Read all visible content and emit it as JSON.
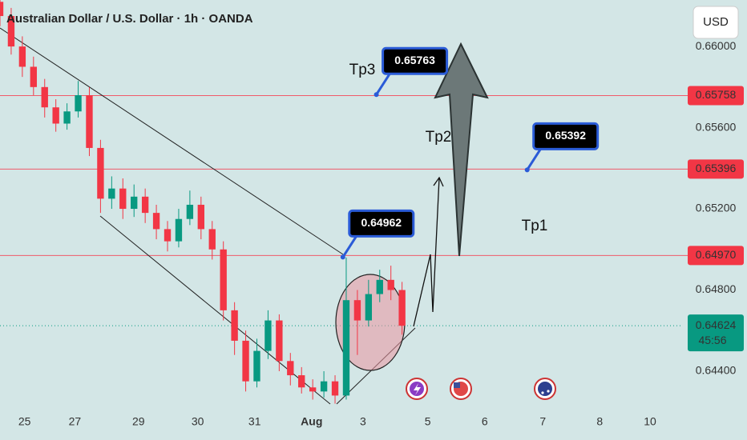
{
  "chart_data": {
    "type": "candlestick",
    "title": "Australian Dollar / U.S. Dollar · 1h · OANDA",
    "currency": "USD",
    "up_color": "#089981",
    "down_color": "#f23645",
    "open": [
      0.6622,
      0.6615,
      0.66,
      0.659,
      0.658,
      0.657,
      0.6562,
      0.6568,
      0.6576,
      0.655,
      0.6525,
      0.653,
      0.652,
      0.6526,
      0.6518,
      0.651,
      0.6504,
      0.6515,
      0.6522,
      0.651,
      0.65,
      0.647,
      0.6455,
      0.6435,
      0.645,
      0.6465,
      0.6445,
      0.6438,
      0.6432,
      0.643,
      0.6435,
      0.6428,
      0.6475,
      0.6465,
      0.6478,
      0.6485,
      0.648
    ],
    "high": [
      0.6626,
      0.6619,
      0.6605,
      0.6595,
      0.6584,
      0.6574,
      0.6572,
      0.6583,
      0.658,
      0.6554,
      0.6536,
      0.6535,
      0.6532,
      0.653,
      0.6522,
      0.6514,
      0.652,
      0.6529,
      0.6526,
      0.6514,
      0.6504,
      0.6474,
      0.646,
      0.6456,
      0.647,
      0.6468,
      0.6449,
      0.6442,
      0.6436,
      0.644,
      0.6438,
      0.6496,
      0.648,
      0.6485,
      0.649,
      0.6492,
      0.6484
    ],
    "low": [
      0.661,
      0.6596,
      0.6585,
      0.6576,
      0.6565,
      0.6558,
      0.6559,
      0.6565,
      0.6546,
      0.6518,
      0.652,
      0.6515,
      0.6516,
      0.6513,
      0.6505,
      0.6499,
      0.6501,
      0.6512,
      0.6505,
      0.6495,
      0.6465,
      0.6448,
      0.643,
      0.6432,
      0.6446,
      0.644,
      0.6433,
      0.6429,
      0.6426,
      0.6427,
      0.6424,
      0.6426,
      0.6448,
      0.6462,
      0.6474,
      0.6475,
      0.6458
    ],
    "close": [
      0.6615,
      0.66,
      0.659,
      0.658,
      0.657,
      0.6562,
      0.6568,
      0.6576,
      0.655,
      0.6525,
      0.653,
      0.652,
      0.6526,
      0.6518,
      0.651,
      0.6504,
      0.6515,
      0.6522,
      0.651,
      0.65,
      0.647,
      0.6455,
      0.6435,
      0.645,
      0.6465,
      0.6445,
      0.6438,
      0.6432,
      0.643,
      0.6435,
      0.6428,
      0.6475,
      0.6465,
      0.6478,
      0.6485,
      0.648,
      0.64624
    ],
    "xlim": [
      0,
      61
    ],
    "xticks": [
      {
        "value": 2.2,
        "label": "25"
      },
      {
        "value": 6.7,
        "label": "27"
      },
      {
        "value": 12.4,
        "label": "29"
      },
      {
        "value": 17.7,
        "label": "30"
      },
      {
        "value": 22.8,
        "label": "31"
      },
      {
        "value": 27.9,
        "label": "Aug"
      },
      {
        "value": 32.5,
        "label": "3"
      },
      {
        "value": 38.3,
        "label": "5"
      },
      {
        "value": 43.4,
        "label": "6"
      },
      {
        "value": 48.6,
        "label": "7"
      },
      {
        "value": 53.7,
        "label": "8"
      },
      {
        "value": 58.2,
        "label": "10"
      }
    ],
    "ylim": [
      0.64191,
      0.66229
    ],
    "yticks": [
      {
        "value": 0.66,
        "label": "0.66000"
      },
      {
        "value": 0.656,
        "label": "0.65600"
      },
      {
        "value": 0.652,
        "label": "0.65200"
      },
      {
        "value": 0.648,
        "label": "0.64800"
      },
      {
        "value": 0.644,
        "label": "0.64400"
      }
    ],
    "grid": false,
    "hlines": [
      {
        "value": 0.65758,
        "label": "0.65758"
      },
      {
        "value": 0.65396,
        "label": "0.65396"
      },
      {
        "value": 0.6497,
        "label": "0.64970"
      }
    ],
    "current_price": {
      "value": 0.64624,
      "label": "0.64624",
      "countdown": "45:56"
    },
    "callouts": [
      {
        "x": 33.7,
        "value": 0.65763,
        "label": "0.65763"
      },
      {
        "x": 47.2,
        "value": 0.65392,
        "label": "0.65392"
      },
      {
        "x": 30.7,
        "value": 0.64962,
        "label": "0.64962"
      }
    ],
    "annotations": [
      "Tp3",
      "Tp2",
      "Tp1"
    ]
  }
}
